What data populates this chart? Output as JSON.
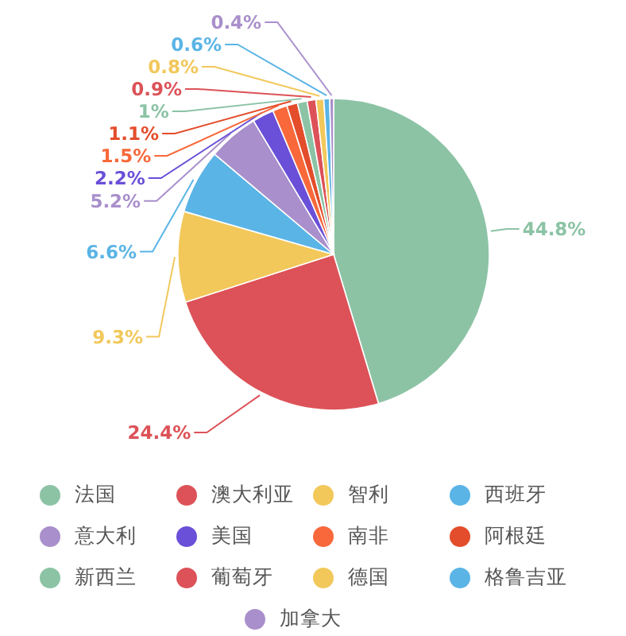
{
  "chart_data": {
    "type": "pie",
    "categories": [
      "法国",
      "澳大利亚",
      "智利",
      "西班牙",
      "意大利",
      "美国",
      "南非",
      "阿根廷",
      "新西兰",
      "葡萄牙",
      "德国",
      "格鲁吉亚",
      "加拿大"
    ],
    "values": [
      44.8,
      24.4,
      9.3,
      6.6,
      5.2,
      2.2,
      1.5,
      1.1,
      1,
      0.9,
      0.8,
      0.6,
      0.4
    ],
    "value_labels": [
      "44.8%",
      "24.4%",
      "9.3%",
      "6.6%",
      "5.2%",
      "2.2%",
      "1.5%",
      "1.1%",
      "1%",
      "0.9%",
      "0.8%",
      "0.6%",
      "0.4%"
    ],
    "colors": [
      "#8cc3a5",
      "#dc5258",
      "#f2c85b",
      "#5ab4e6",
      "#a98fcb",
      "#6a4fd8",
      "#f8683a",
      "#e34d2b",
      "#8cc3a5",
      "#dc5258",
      "#f2c85b",
      "#5ab4e6",
      "#a98fcb"
    ],
    "legend": "bottom"
  }
}
